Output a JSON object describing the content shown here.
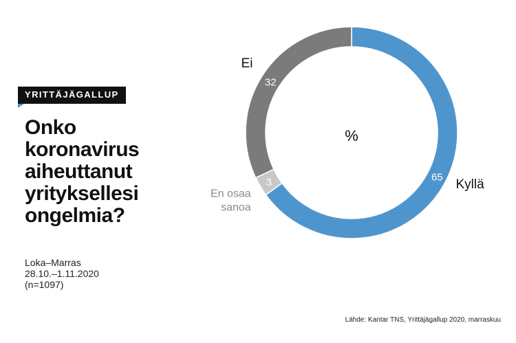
{
  "badge": "YRITTÄJÄGALLUP",
  "title_lines": [
    "Onko",
    "koronavirus",
    "aiheuttanut",
    "yrityksellesi",
    "ongelmia?"
  ],
  "meta": {
    "period": "Loka–Marras",
    "dates": "28.10.–1.11.2020",
    "sample": "(n=1097)"
  },
  "source": "Lähde: Kantar TNS, Yrittäjägallup 2020, marraskuu",
  "chart_data": {
    "type": "pie",
    "center_label": "%",
    "slices": [
      {
        "label": "Kyllä",
        "value": 65,
        "color": "#4f95cd"
      },
      {
        "label": "En osaa sanoa",
        "label_lines": [
          "En osaa",
          "sanoa"
        ],
        "value": 3,
        "color": "#c8c8c8"
      },
      {
        "label": "Ei",
        "value": 32,
        "color": "#7b7b7b"
      }
    ]
  }
}
